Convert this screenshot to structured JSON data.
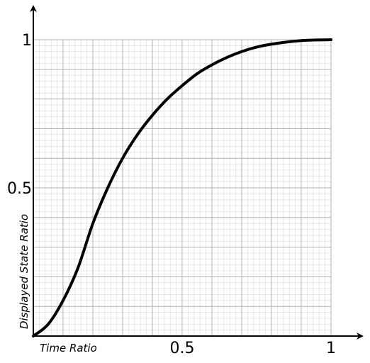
{
  "chart_data": {
    "type": "line",
    "title": "",
    "xlabel": "Time Ratio",
    "ylabel": "Displayed State Ratio",
    "xlim": [
      0,
      1
    ],
    "ylim": [
      0,
      1
    ],
    "x_ticks": [
      {
        "value": 0.5,
        "label": "0.5"
      },
      {
        "value": 1,
        "label": "1"
      }
    ],
    "y_ticks": [
      {
        "value": 0.5,
        "label": "0.5"
      },
      {
        "value": 1,
        "label": "1"
      }
    ],
    "grid": {
      "major": true,
      "minor": true,
      "major_step": 0.1,
      "minor_step": 0.02
    },
    "colors": {
      "line": "#000000",
      "grid_major": "#b0b0b0",
      "grid_minor": "#dedede",
      "axis": "#000000"
    },
    "series": [
      {
        "x": [
          0,
          0.05,
          0.1,
          0.15,
          0.2,
          0.25,
          0.3,
          0.35,
          0.4,
          0.45,
          0.5,
          0.55,
          0.6,
          0.65,
          0.7,
          0.75,
          0.8,
          0.85,
          0.9,
          0.95,
          1
        ],
        "y": [
          0,
          0.04,
          0.12,
          0.23,
          0.38,
          0.5,
          0.6,
          0.68,
          0.745,
          0.8,
          0.845,
          0.885,
          0.915,
          0.94,
          0.96,
          0.975,
          0.985,
          0.992,
          0.997,
          0.999,
          1
        ]
      }
    ]
  }
}
